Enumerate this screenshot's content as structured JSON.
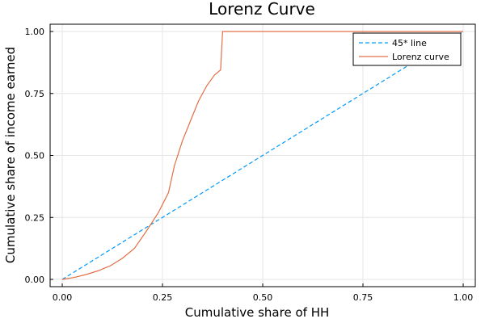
{
  "chart_data": {
    "type": "line",
    "title": "Lorenz Curve",
    "xlabel": "Cumulative share of HH",
    "ylabel": "Cumulative share of income earned",
    "xlim": [
      0,
      1
    ],
    "ylim": [
      0,
      1
    ],
    "xticks": [
      0,
      0.25,
      0.5,
      0.75,
      1
    ],
    "xtick_labels": [
      "0.00",
      "0.25",
      "0.50",
      "0.75",
      "1.00"
    ],
    "yticks": [
      0,
      0.25,
      0.5,
      0.75,
      1
    ],
    "ytick_labels": [
      "0.00",
      "0.25",
      "0.50",
      "0.75",
      "1.00"
    ],
    "grid": true,
    "legend_position": "top-right",
    "series": [
      {
        "name": "45* line",
        "color": "#009AFA",
        "dash": "dashed",
        "x": [
          0,
          1
        ],
        "y": [
          0,
          1
        ]
      },
      {
        "name": "Lorenz curve",
        "color": "#E26F46",
        "dash": "solid",
        "x": [
          0,
          0.03,
          0.06,
          0.09,
          0.12,
          0.15,
          0.18,
          0.21,
          0.24,
          0.265,
          0.28,
          0.3,
          0.32,
          0.34,
          0.36,
          0.38,
          0.395,
          0.4,
          0.6,
          0.8,
          1
        ],
        "y": [
          0,
          0.008,
          0.02,
          0.035,
          0.055,
          0.085,
          0.125,
          0.195,
          0.27,
          0.35,
          0.46,
          0.56,
          0.64,
          0.72,
          0.78,
          0.825,
          0.845,
          1.0,
          1.0,
          1.0,
          1.0
        ]
      }
    ]
  }
}
